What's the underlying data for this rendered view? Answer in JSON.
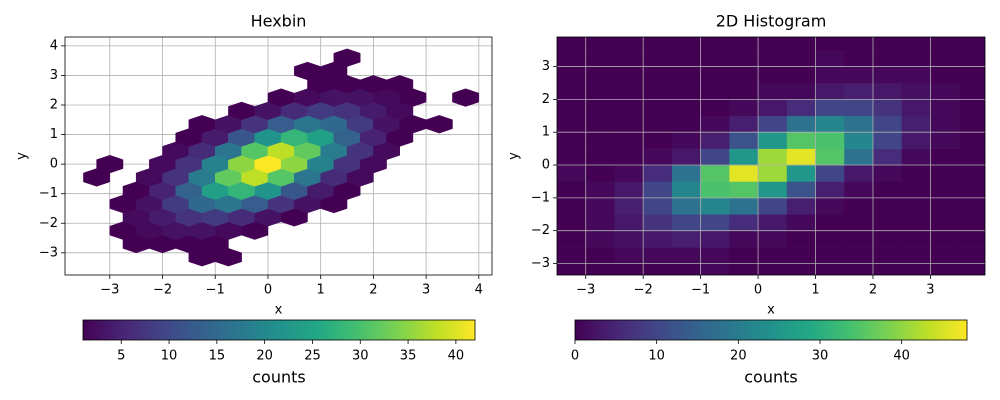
{
  "chart_data": [
    {
      "type": "hexbin",
      "title": "Hexbin",
      "x_label": "x",
      "y_label": "y",
      "colormap": "viridis",
      "grid": true,
      "xlim": [
        -3.85,
        4.25
      ],
      "ylim": [
        -3.75,
        4.3
      ],
      "xticks": [
        {
          "value": -3,
          "label": "−3"
        },
        {
          "value": -2,
          "label": "−2"
        },
        {
          "value": -1,
          "label": "−1"
        },
        0,
        1,
        2,
        3,
        4
      ],
      "yticks": [
        {
          "value": -3,
          "label": "−3"
        },
        {
          "value": -2,
          "label": "−2"
        },
        {
          "value": -1,
          "label": "−1"
        },
        0,
        1,
        2,
        3,
        4
      ],
      "x": [
        -1.25,
        -0.75,
        -2.5,
        -2,
        -1.5,
        -1,
        -2.75,
        -2.25,
        -1.75,
        -1.25,
        -0.75,
        -0.25,
        -2.5,
        -2,
        -1.5,
        -1,
        -0.5,
        0,
        0.5,
        -2.75,
        -2.25,
        -1.75,
        -1.25,
        -0.75,
        -0.25,
        0.25,
        0.75,
        1.25,
        -2.5,
        -2,
        -1.5,
        -1,
        -0.5,
        0,
        0.5,
        1,
        1.5,
        -3.25,
        -2.25,
        -1.75,
        -1.25,
        -0.75,
        -0.25,
        0.25,
        0.75,
        1.25,
        1.75,
        -3,
        -2,
        -1.5,
        -1,
        -0.5,
        0,
        0.5,
        1,
        1.5,
        2,
        -1.75,
        -1.25,
        -0.75,
        -0.25,
        0.25,
        0.75,
        1.25,
        1.75,
        2.25,
        -1.5,
        -1,
        -0.5,
        0,
        0.5,
        1,
        1.5,
        2,
        2.5,
        -1.25,
        -0.75,
        -0.25,
        0.25,
        0.75,
        1.25,
        1.75,
        2.25,
        2.75,
        3.25,
        -0.5,
        0,
        0.5,
        1,
        1.5,
        2,
        2.5,
        0.25,
        0.75,
        1.25,
        1.75,
        2.25,
        2.75,
        3.75,
        1,
        1.5,
        2,
        2.5,
        0.75,
        1.25,
        1.5
      ],
      "y": [
        -3.15,
        -3.15,
        -2.7,
        -2.7,
        -2.7,
        -2.7,
        -2.25,
        -2.25,
        -2.25,
        -2.25,
        -2.25,
        -2.25,
        -1.8,
        -1.8,
        -1.8,
        -1.8,
        -1.8,
        -1.8,
        -1.8,
        -1.35,
        -1.35,
        -1.35,
        -1.35,
        -1.35,
        -1.35,
        -1.35,
        -1.35,
        -1.35,
        -0.9,
        -0.9,
        -0.9,
        -0.9,
        -0.9,
        -0.9,
        -0.9,
        -0.9,
        -0.9,
        -0.45,
        -0.45,
        -0.45,
        -0.45,
        -0.45,
        -0.45,
        -0.45,
        -0.45,
        -0.45,
        -0.45,
        0,
        0,
        0,
        0,
        0,
        0,
        0,
        0,
        0,
        0,
        0.45,
        0.45,
        0.45,
        0.45,
        0.45,
        0.45,
        0.45,
        0.45,
        0.45,
        0.9,
        0.9,
        0.9,
        0.9,
        0.9,
        0.9,
        0.9,
        0.9,
        0.9,
        1.35,
        1.35,
        1.35,
        1.35,
        1.35,
        1.35,
        1.35,
        1.35,
        1.35,
        1.35,
        1.8,
        1.8,
        1.8,
        1.8,
        1.8,
        1.8,
        1.8,
        2.25,
        2.25,
        2.25,
        2.25,
        2.25,
        2.25,
        2.25,
        2.7,
        2.7,
        2.7,
        2.7,
        3.15,
        3.15,
        3.6
      ],
      "values": [
        1,
        1,
        1,
        1,
        1,
        1,
        1,
        2,
        3,
        3,
        2,
        1,
        2,
        4,
        7,
        8,
        6,
        3,
        1,
        1,
        3,
        8,
        15,
        17,
        13,
        7,
        3,
        1,
        1,
        5,
        14,
        24,
        28,
        22,
        12,
        4,
        1,
        1,
        2,
        7,
        18,
        32,
        38,
        31,
        17,
        6,
        2,
        1,
        2,
        7,
        19,
        35,
        42,
        35,
        19,
        7,
        2,
        2,
        6,
        17,
        31,
        38,
        32,
        18,
        7,
        2,
        1,
        4,
        12,
        22,
        28,
        24,
        14,
        5,
        1,
        1,
        3,
        7,
        13,
        17,
        15,
        8,
        3,
        1,
        1,
        1,
        3,
        6,
        8,
        7,
        4,
        2,
        1,
        2,
        3,
        3,
        2,
        1,
        1,
        1,
        1,
        1,
        1,
        1,
        1,
        1
      ],
      "colorbar": {
        "label": "counts",
        "lim": [
          1,
          42
        ],
        "ticks": [
          5,
          10,
          15,
          20,
          25,
          30,
          35,
          40
        ]
      }
    },
    {
      "type": "hist2d",
      "title": "2D Histogram",
      "x_label": "x",
      "y_label": "y",
      "colormap": "viridis",
      "grid": true,
      "xlim": [
        -3.5,
        3.95
      ],
      "ylim": [
        -3.35,
        3.9
      ],
      "xticks": [
        {
          "value": -3,
          "label": "−3"
        },
        {
          "value": -2,
          "label": "−2"
        },
        {
          "value": -1,
          "label": "−1"
        },
        0,
        1,
        2,
        3
      ],
      "yticks": [
        {
          "value": -3,
          "label": "−3"
        },
        {
          "value": -2,
          "label": "−2"
        },
        {
          "value": -1,
          "label": "−1"
        },
        0,
        1,
        2,
        3
      ],
      "xbins": [
        -3.5,
        -3,
        -2.5,
        -2,
        -1.5,
        -1,
        -0.5,
        0,
        0.5,
        1,
        1.5,
        2,
        2.5,
        3,
        3.5,
        4
      ],
      "ybins": [
        -3.5,
        -3,
        -2.5,
        -2,
        -1.5,
        -1,
        -0.5,
        0,
        0.5,
        1,
        1.5,
        2,
        2.5,
        3,
        3.5,
        4
      ],
      "values": [
        [
          0,
          0,
          0,
          0,
          0,
          1,
          0,
          0,
          0,
          0,
          0,
          0,
          0,
          0,
          0
        ],
        [
          0,
          0,
          1,
          1,
          1,
          1,
          0,
          0,
          0,
          0,
          0,
          0,
          0,
          0,
          0
        ],
        [
          0,
          1,
          2,
          3,
          4,
          3,
          1,
          1,
          0,
          0,
          0,
          0,
          0,
          0,
          0
        ],
        [
          0,
          1,
          3,
          7,
          10,
          10,
          6,
          3,
          1,
          0,
          0,
          0,
          0,
          0,
          0
        ],
        [
          0,
          1,
          4,
          10,
          18,
          22,
          18,
          10,
          4,
          1,
          0,
          0,
          0,
          0,
          0
        ],
        [
          0,
          1,
          3,
          10,
          22,
          34,
          35,
          25,
          12,
          4,
          1,
          0,
          0,
          0,
          0
        ],
        [
          1,
          0,
          1,
          6,
          18,
          35,
          46,
          41,
          25,
          10,
          3,
          1,
          0,
          0,
          0
        ],
        [
          0,
          0,
          0,
          1,
          3,
          10,
          25,
          41,
          46,
          35,
          18,
          6,
          1,
          0,
          0
        ],
        [
          0,
          0,
          0,
          0,
          1,
          4,
          12,
          25,
          35,
          34,
          22,
          10,
          3,
          1,
          0
        ],
        [
          0,
          0,
          0,
          0,
          0,
          1,
          4,
          10,
          18,
          22,
          18,
          10,
          4,
          1,
          0
        ],
        [
          0,
          0,
          0,
          0,
          0,
          0,
          1,
          3,
          6,
          10,
          10,
          7,
          3,
          1,
          0
        ],
        [
          0,
          0,
          0,
          0,
          0,
          0,
          0,
          1,
          1,
          3,
          4,
          3,
          2,
          1,
          0
        ],
        [
          0,
          0,
          0,
          0,
          0,
          0,
          0,
          0,
          0,
          1,
          1,
          1,
          1,
          0,
          0
        ],
        [
          0,
          0,
          0,
          0,
          0,
          0,
          0,
          0,
          0,
          1,
          0,
          0,
          0,
          0,
          0
        ],
        [
          0,
          0,
          0,
          0,
          0,
          0,
          0,
          0,
          0,
          0,
          0,
          0,
          0,
          0,
          0
        ]
      ],
      "colorbar": {
        "label": "counts",
        "lim": [
          0,
          48
        ],
        "ticks": [
          0,
          10,
          20,
          30,
          40
        ]
      }
    }
  ]
}
